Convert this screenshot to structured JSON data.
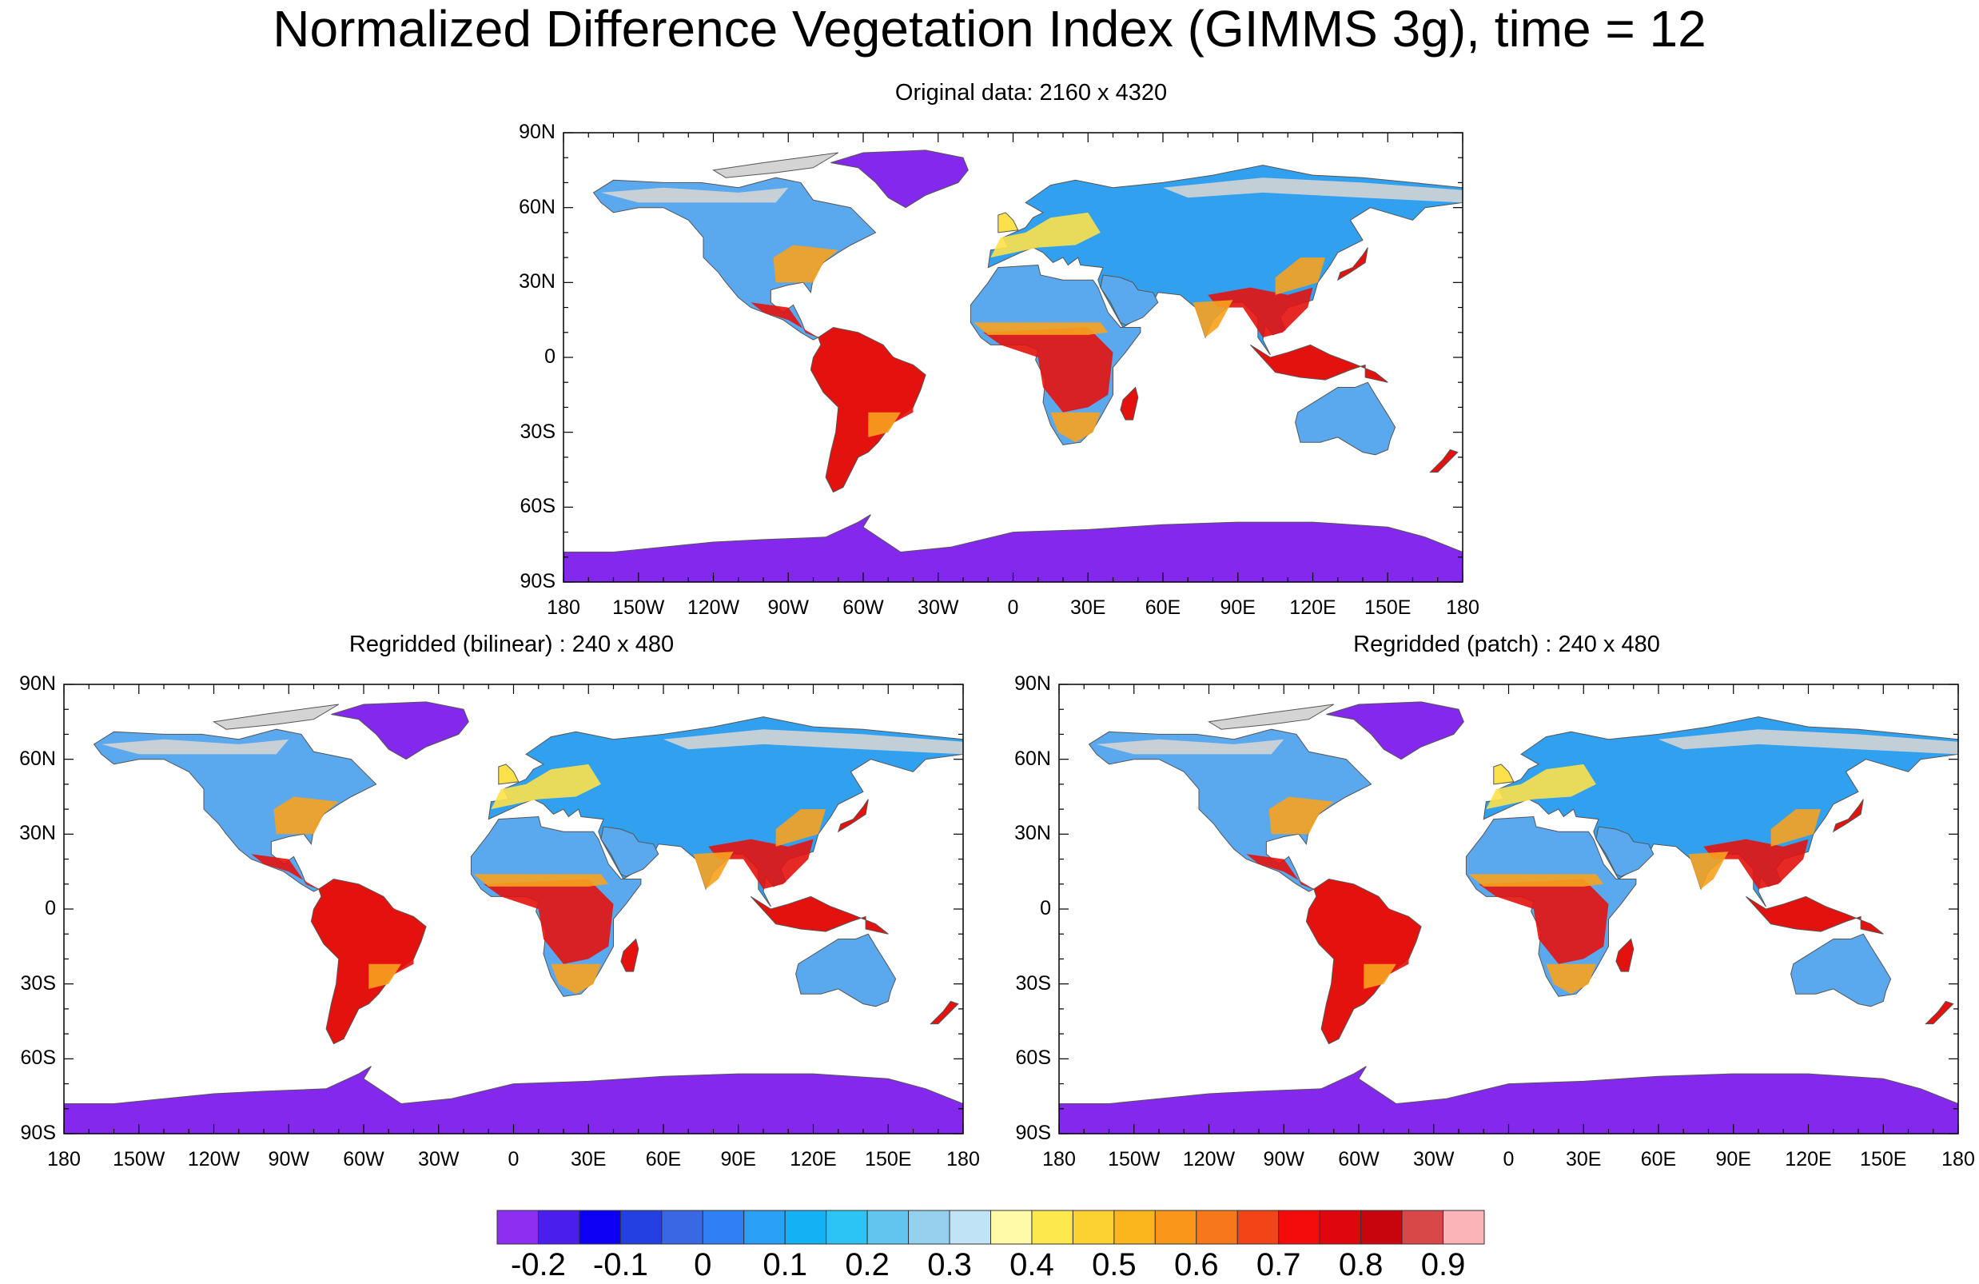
{
  "title": "Normalized Difference Vegetation Index (GIMMS 3g), time = 12",
  "panels": [
    {
      "id": "original",
      "title": "Original data: 2160 x 4320"
    },
    {
      "id": "bilinear",
      "title": "Regridded (bilinear) : 240 x 480"
    },
    {
      "id": "patch",
      "title": "Regridded (patch) : 240 x 480"
    }
  ],
  "lat_labels": [
    "90N",
    "60N",
    "30N",
    "0",
    "30S",
    "60S",
    "90S"
  ],
  "lon_labels": [
    "180",
    "150W",
    "120W",
    "90W",
    "60W",
    "30W",
    "0",
    "30E",
    "60E",
    "90E",
    "120E",
    "150E",
    "180"
  ],
  "colorbar": {
    "colors": [
      "#8c2ff0",
      "#4a1fee",
      "#0b00f4",
      "#2440e0",
      "#3a67e3",
      "#2f80f5",
      "#2aa0f7",
      "#14b2f4",
      "#2cc4f4",
      "#62c5f0",
      "#95d0ef",
      "#c0e4f5",
      "#fffaa8",
      "#fde94e",
      "#fcd232",
      "#fbb61d",
      "#fa961a",
      "#f7781a",
      "#f34417",
      "#f40c0d",
      "#e0060e",
      "#c8050c",
      "#d84848",
      "#fbb5b8"
    ],
    "labels": [
      "-0.2",
      "-0.1",
      "0",
      "0.1",
      "0.2",
      "0.3",
      "0.4",
      "0.5",
      "0.6",
      "0.7",
      "0.8",
      "0.9"
    ]
  },
  "colors": {
    "ocean": "#ffffff",
    "no_data": "#d4d4d4",
    "ice": "#8528ee",
    "forest": "#e4120e",
    "desert": "#5aa8ee",
    "steppe": "#31a0ee",
    "savanna": "#f7a21e",
    "mixed": "#fde14a"
  }
}
